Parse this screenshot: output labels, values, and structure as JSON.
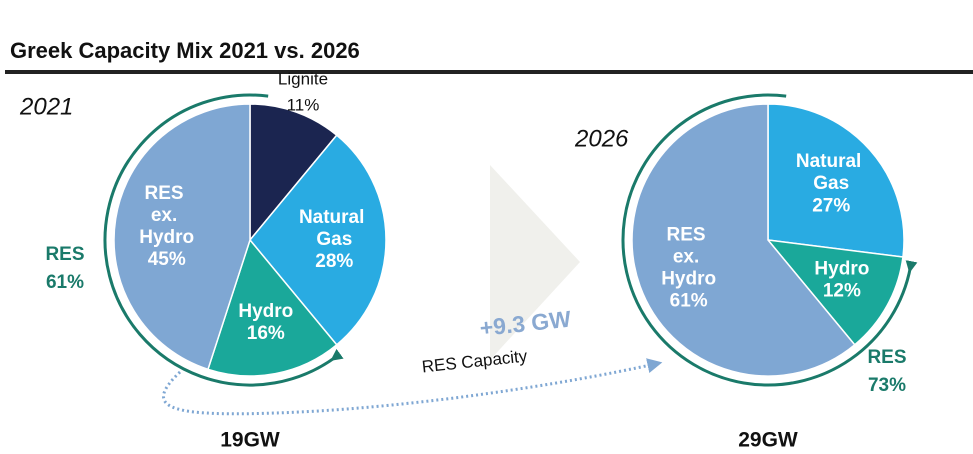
{
  "title": "Greek Capacity Mix 2021 vs. 2026",
  "annotations": [
    "+9.3 GW",
    "RES Capacity"
  ],
  "chart_data": [
    {
      "type": "pie",
      "subtitle": "2021",
      "total": "19GW",
      "categories": [
        "Lignite",
        "Natural Gas",
        "Hydro",
        "RES ex. Hydro"
      ],
      "values": [
        11,
        28,
        16,
        45
      ],
      "value_labels": [
        "11%",
        "28%",
        "16%",
        "45%"
      ],
      "colors": [
        "#1b2550",
        "#29abe2",
        "#1aa89a",
        "#7fa7d3"
      ],
      "group_labels": [
        "RES",
        "61%"
      ]
    },
    {
      "type": "pie",
      "subtitle": "2026",
      "total": "29GW",
      "categories": [
        "Natural Gas",
        "Hydro",
        "RES ex. Hydro"
      ],
      "values": [
        27,
        12,
        61
      ],
      "value_labels": [
        "27%",
        "12%",
        "61%"
      ],
      "colors": [
        "#29abe2",
        "#1aa89a",
        "#7fa7d3"
      ],
      "group_labels": [
        "RES",
        "73%"
      ]
    }
  ]
}
